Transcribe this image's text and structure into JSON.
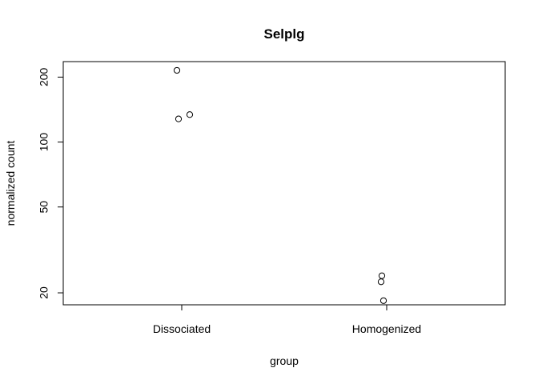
{
  "chart_data": {
    "type": "scatter",
    "title": "Selplg",
    "xlabel": "group",
    "ylabel": "normalized count",
    "y_scale": "log",
    "categories": [
      "Dissociated",
      "Homogenized"
    ],
    "y_ticks": [
      20,
      50,
      100,
      200
    ],
    "ylim": [
      17.6,
      236
    ],
    "points": [
      {
        "group": "Dissociated",
        "y": 215
      },
      {
        "group": "Dissociated",
        "y": 134
      },
      {
        "group": "Dissociated",
        "y": 128
      },
      {
        "group": "Homogenized",
        "y": 24
      },
      {
        "group": "Homogenized",
        "y": 22.5
      },
      {
        "group": "Homogenized",
        "y": 18.4
      }
    ],
    "grid": false,
    "legend": "none"
  }
}
